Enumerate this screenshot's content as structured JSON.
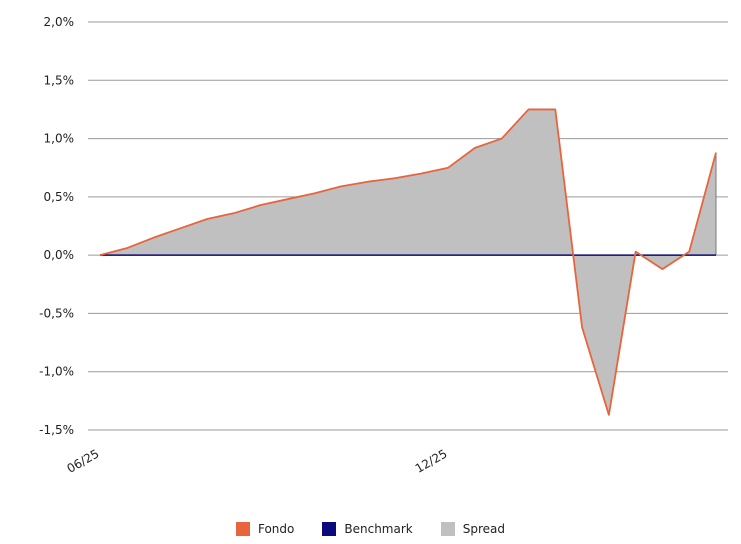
{
  "chart_data": {
    "type": "area",
    "y_axis": {
      "range": [
        -1.5,
        2.0
      ],
      "ticks": [
        2.0,
        1.5,
        1.0,
        0.5,
        0.0,
        -0.5,
        -1.0,
        -1.5
      ],
      "tick_labels": [
        "2,0%",
        "1,5%",
        "1,0%",
        "0,5%",
        "0,0%",
        "-0,5%",
        "-1,0%",
        "-1,5%"
      ]
    },
    "x_axis": {
      "tick_labels": [
        {
          "label": "06/25",
          "index": 0
        },
        {
          "label": "12/25",
          "index": 13
        }
      ]
    },
    "grid": true,
    "legend_position": "bottom",
    "series": [
      {
        "name": "Fondo",
        "color": "#e8643c",
        "values": [
          0.0,
          0.06,
          0.15,
          0.23,
          0.31,
          0.36,
          0.43,
          0.48,
          0.53,
          0.59,
          0.63,
          0.66,
          0.7,
          0.75,
          0.92,
          1.0,
          1.25,
          1.25,
          -0.62,
          -1.37,
          0.03,
          -0.12,
          0.03,
          0.88
        ]
      },
      {
        "name": "Benchmark",
        "color": "#0a0a7a",
        "values": [
          0.0,
          0.0,
          0.0,
          0.0,
          0.0,
          0.0,
          0.0,
          0.0,
          0.0,
          0.0,
          0.0,
          0.0,
          0.0,
          0.0,
          0.0,
          0.0,
          0.0,
          0.0,
          0.0,
          0.0,
          0.0,
          0.0,
          0.0,
          0.0
        ]
      },
      {
        "name": "Spread",
        "color": "#c0c0c0",
        "values": [
          0.0,
          0.06,
          0.15,
          0.23,
          0.31,
          0.36,
          0.43,
          0.48,
          0.53,
          0.59,
          0.63,
          0.66,
          0.7,
          0.75,
          0.92,
          1.0,
          1.25,
          1.25,
          -0.62,
          -1.37,
          0.03,
          -0.12,
          0.03,
          0.88
        ]
      }
    ]
  }
}
